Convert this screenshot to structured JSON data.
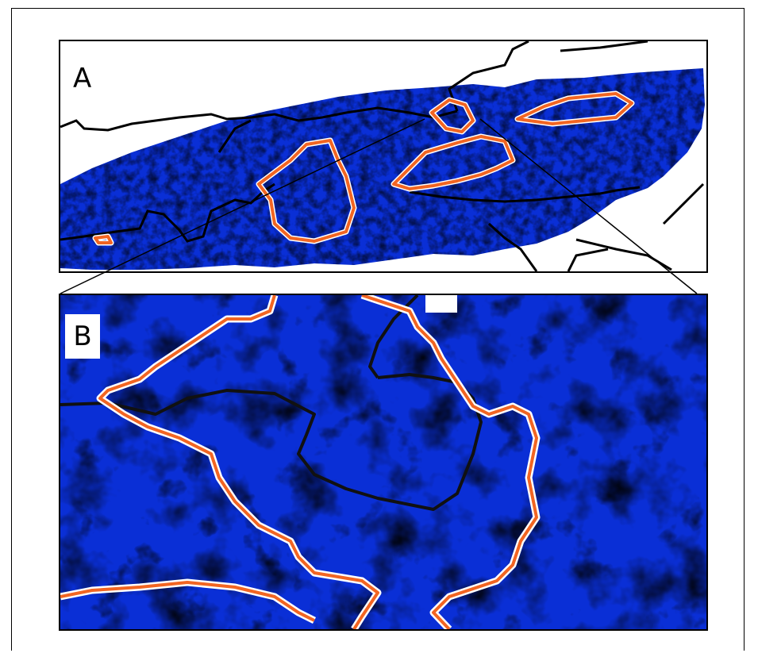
{
  "panels": {
    "a": {
      "label": "A"
    },
    "b": {
      "label": "B"
    }
  },
  "colors": {
    "outline_orange": "#f26522",
    "outline_halo": "#ffffff",
    "border_line": "#111111",
    "low": "#0a2fd6",
    "mid": "#1aa0f0",
    "high": "#7ee06a",
    "peak": "#f3e21a",
    "top": "#e2731c"
  }
}
